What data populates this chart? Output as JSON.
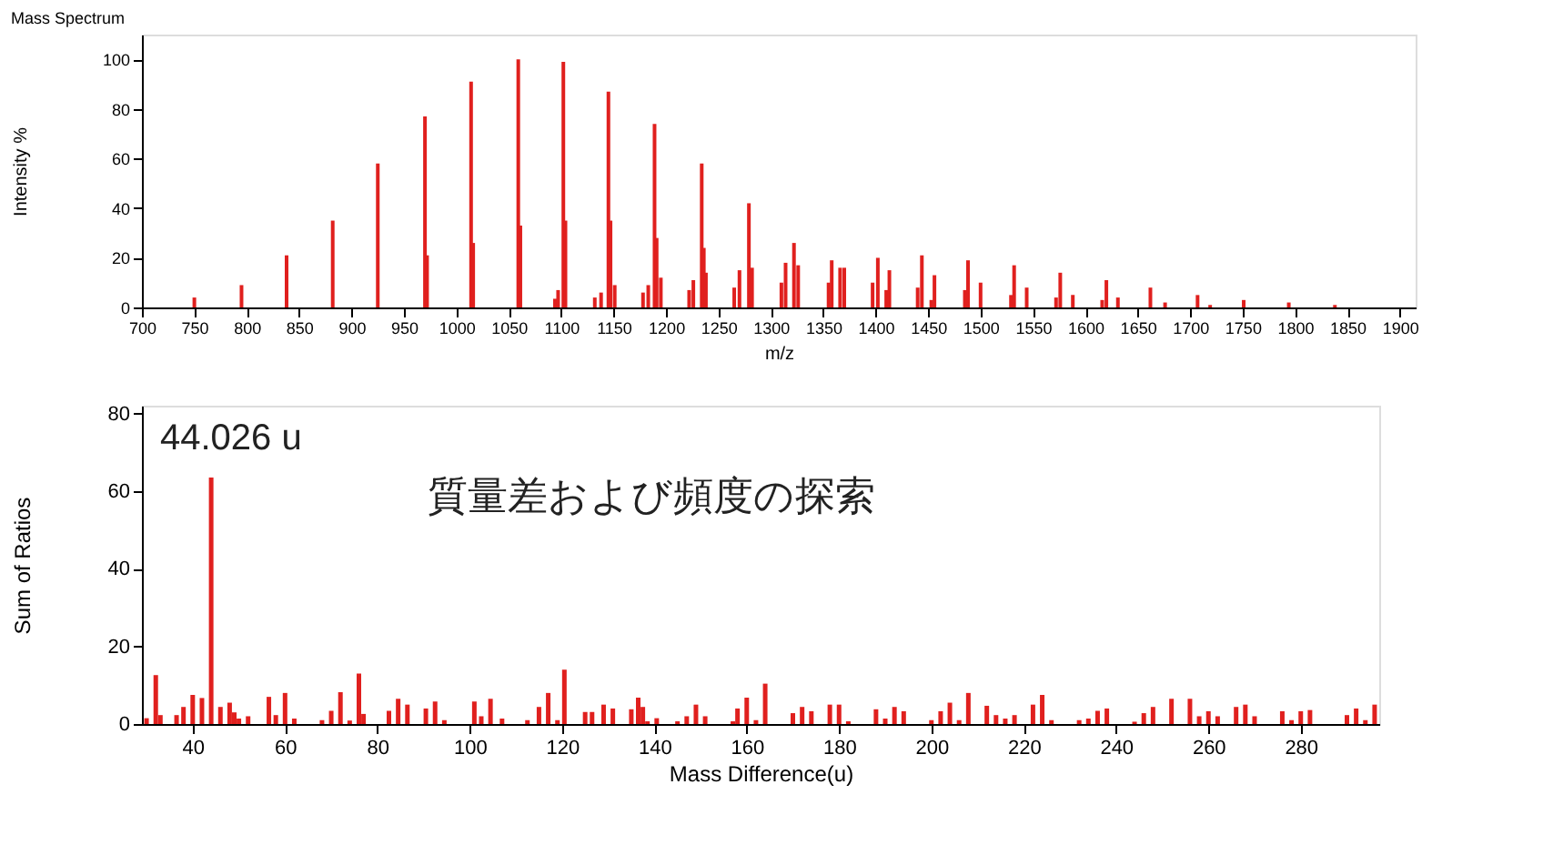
{
  "chart_data": [
    {
      "type": "bar",
      "title": "Mass Spectrum",
      "xlabel": "m/z",
      "ylabel": "Intensity %",
      "color": "#e0201e",
      "grid": false,
      "x": [
        750,
        795,
        838,
        882,
        925,
        970,
        972,
        1014,
        1016,
        1059,
        1061,
        1094,
        1097,
        1102,
        1104,
        1132,
        1138,
        1145,
        1147,
        1151,
        1178,
        1183,
        1189,
        1191,
        1195,
        1222,
        1226,
        1234,
        1236,
        1238,
        1265,
        1270,
        1279,
        1282,
        1310,
        1314,
        1322,
        1326,
        1355,
        1358,
        1366,
        1370,
        1397,
        1402,
        1410,
        1413,
        1440,
        1444,
        1453,
        1456,
        1485,
        1488,
        1500,
        1529,
        1532,
        1544,
        1572,
        1576,
        1588,
        1616,
        1620,
        1631,
        1662,
        1676,
        1707,
        1719,
        1751,
        1794,
        1838
      ],
      "values": [
        4,
        9,
        21,
        35,
        58,
        77,
        21,
        91,
        26,
        100,
        33,
        3.5,
        7,
        99,
        35,
        4,
        6,
        87,
        35,
        9,
        6,
        9,
        74,
        28,
        12,
        7,
        11,
        58,
        24,
        14,
        8,
        15,
        42,
        16,
        10,
        18,
        26,
        17,
        10,
        19,
        16,
        16,
        10,
        20,
        7,
        15,
        8,
        21,
        3,
        13,
        7,
        19,
        10,
        5,
        17,
        8,
        4,
        14,
        5,
        3,
        11,
        4,
        8,
        2,
        5,
        1,
        3,
        2,
        1
      ],
      "xlim": [
        700,
        1915
      ],
      "ylim": [
        0,
        110
      ],
      "xticks": [
        700,
        750,
        800,
        850,
        900,
        950,
        1000,
        1050,
        1100,
        1150,
        1200,
        1250,
        1300,
        1350,
        1400,
        1450,
        1500,
        1550,
        1600,
        1650,
        1700,
        1750,
        1800,
        1850,
        1900
      ],
      "yticks": [
        0,
        20,
        40,
        60,
        80,
        100
      ]
    },
    {
      "type": "bar",
      "xlabel": "Mass Difference(u)",
      "ylabel": "Sum of Ratios",
      "color": "#e0201e",
      "grid": false,
      "annotations": [
        "44.026 u",
        "質量差および頻度の探索"
      ],
      "x": [
        30,
        32,
        33,
        36.5,
        38,
        40,
        42,
        44,
        46,
        48,
        49,
        50,
        52,
        56.5,
        58,
        60,
        62,
        68,
        70,
        72,
        74,
        76,
        77,
        82.5,
        84.5,
        86.5,
        90.5,
        92.5,
        94.5,
        101,
        102.5,
        104.5,
        107,
        112.5,
        115,
        117,
        119,
        120.5,
        125,
        126.5,
        129,
        131,
        135,
        136.5,
        137.5,
        138.5,
        140.5,
        145,
        147,
        149,
        151,
        157,
        158,
        160,
        162,
        164,
        170,
        172,
        174,
        178,
        180,
        182,
        188,
        190,
        192,
        194,
        200,
        202,
        204,
        206,
        208,
        212,
        214,
        216,
        218,
        222,
        224,
        226,
        232,
        234,
        236,
        238,
        244,
        246,
        248,
        252,
        256,
        258,
        260,
        262,
        266,
        268,
        270,
        276,
        278,
        280,
        282,
        290,
        292,
        294,
        296
      ],
      "values": [
        1.5,
        12.6,
        2.3,
        2.3,
        4.4,
        7.5,
        6.7,
        63.5,
        4.4,
        5.5,
        3,
        1.4,
        2,
        7,
        2.3,
        8,
        1.4,
        1,
        3.4,
        8.2,
        0.9,
        13,
        2.6,
        3.4,
        6.5,
        5,
        4,
        5.8,
        1,
        5.8,
        2,
        6.5,
        1.4,
        1,
        4.4,
        8,
        1,
        14,
        3.1,
        3.1,
        5,
        4,
        3.8,
        6.8,
        4.4,
        0.7,
        1.5,
        0.7,
        2,
        5,
        2,
        0.7,
        4,
        6.8,
        1,
        10.4,
        2.8,
        4.4,
        3.3,
        5,
        5,
        0.7,
        3.8,
        1.4,
        4.4,
        3.3,
        1,
        3.3,
        5.5,
        1,
        8,
        4.7,
        2.3,
        1.4,
        2.3,
        5,
        7.5,
        1,
        1,
        1.4,
        3.4,
        4,
        0.6,
        2.8,
        4.4,
        6.5,
        6.5,
        2,
        3.3,
        2,
        4.4,
        5,
        2,
        3.3,
        1,
        3.3,
        3.6,
        2.3,
        4,
        1,
        5
      ],
      "xlim": [
        29,
        297
      ],
      "ylim": [
        0,
        82
      ],
      "xticks": [
        40,
        60,
        80,
        100,
        120,
        140,
        160,
        180,
        200,
        220,
        240,
        260,
        280
      ],
      "yticks": [
        0,
        20,
        40,
        60,
        80
      ]
    }
  ]
}
